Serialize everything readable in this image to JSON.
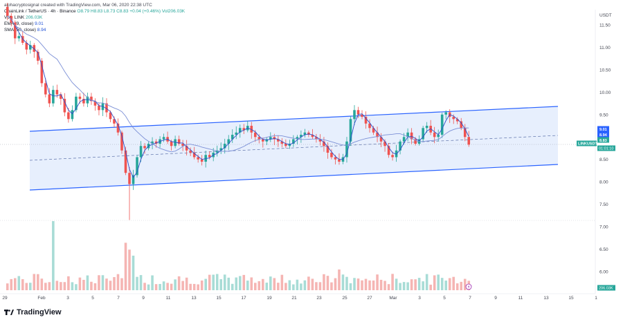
{
  "header": {
    "created": "alphacryptosignal created with TradingView.com, Mar 06, 2020 22:38 UTC",
    "symbol_line": "ChainLink / TetherUS · 4h · Binance",
    "ohlc": "O8.79 H8.83 L8.73 C8.83 +0.04 (+0.46%) Vol206.03K",
    "vol_label": "Vol · LINK",
    "vol_value": "206.03K",
    "ema_label": "EMA (9, close)",
    "ema_value": "9.01",
    "sma_label": "SMA (50, close)",
    "sma_value": "8.94"
  },
  "logo": {
    "text": "TradingView",
    "icon": "tradingview-logo-icon"
  },
  "colors": {
    "up": "#26a69a",
    "down": "#ef5350",
    "channel": "#2962ff",
    "channel_fill": "#e3ecfd",
    "ema": "#2c4dc8",
    "sma": "#7b8fd6"
  },
  "chart_data": {
    "type": "candlestick",
    "symbol": "LINKUSDT",
    "interval": "4h",
    "y_unit": "USDT",
    "price_ticks": [
      "11.50",
      "11.00",
      "10.50",
      "10.00",
      "9.50",
      "9.00",
      "8.50",
      "8.00",
      "7.50",
      "7.00",
      "6.50",
      "6.00"
    ],
    "x_ticks": [
      "29",
      "Feb",
      "3",
      "5",
      "7",
      "9",
      "11",
      "13",
      "15",
      "17",
      "19",
      "21",
      "23",
      "25",
      "27",
      "Mar",
      "3",
      "5",
      "7",
      "9",
      "11",
      "13",
      "15",
      "1"
    ],
    "price_labels": [
      {
        "value": "9.01",
        "label": "9.01",
        "color": "#2962ff"
      },
      {
        "value": "8.94",
        "label": "8.94",
        "color": "#2962ff"
      },
      {
        "value": "8.83",
        "label": "8.83",
        "color": "#26a69a"
      }
    ],
    "symbol_label": "LINKUSDT",
    "countdown": "01:01:10",
    "volume_label": "206.03K",
    "close_series": [
      11.7,
      11.55,
      11.2,
      11.25,
      11.1,
      10.95,
      11.05,
      10.9,
      10.7,
      10.2,
      9.95,
      9.75,
      10.05,
      9.95,
      9.85,
      9.55,
      9.4,
      9.6,
      9.9,
      9.85,
      9.75,
      9.9,
      9.8,
      9.7,
      9.6,
      9.75,
      9.55,
      9.4,
      9.3,
      9.1,
      8.7,
      8.2,
      7.95,
      8.15,
      8.55,
      8.8,
      8.75,
      8.85,
      8.9,
      8.85,
      8.95,
      9.0,
      8.9,
      8.8,
      8.95,
      8.85,
      8.8,
      8.7,
      8.65,
      8.55,
      8.5,
      8.45,
      8.6,
      8.55,
      8.65,
      8.7,
      8.75,
      8.85,
      8.95,
      9.05,
      9.1,
      9.2,
      9.15,
      9.25,
      9.1,
      9.0,
      8.95,
      8.9,
      8.95,
      9.0,
      8.95,
      8.9,
      8.85,
      8.8,
      8.85,
      8.95,
      9.0,
      9.05,
      9.1,
      9.05,
      9.0,
      8.95,
      8.9,
      8.8,
      8.65,
      8.55,
      8.5,
      8.45,
      8.55,
      8.9,
      9.4,
      9.6,
      9.5,
      9.45,
      9.3,
      9.2,
      9.1,
      9.0,
      8.9,
      8.8,
      8.6,
      8.55,
      8.7,
      8.9,
      9.0,
      9.1,
      8.95,
      8.85,
      8.95,
      9.2,
      9.25,
      9.1,
      9.0,
      9.05,
      9.5,
      9.55,
      9.45,
      9.4,
      9.35,
      9.2,
      9.0,
      8.83
    ]
  }
}
